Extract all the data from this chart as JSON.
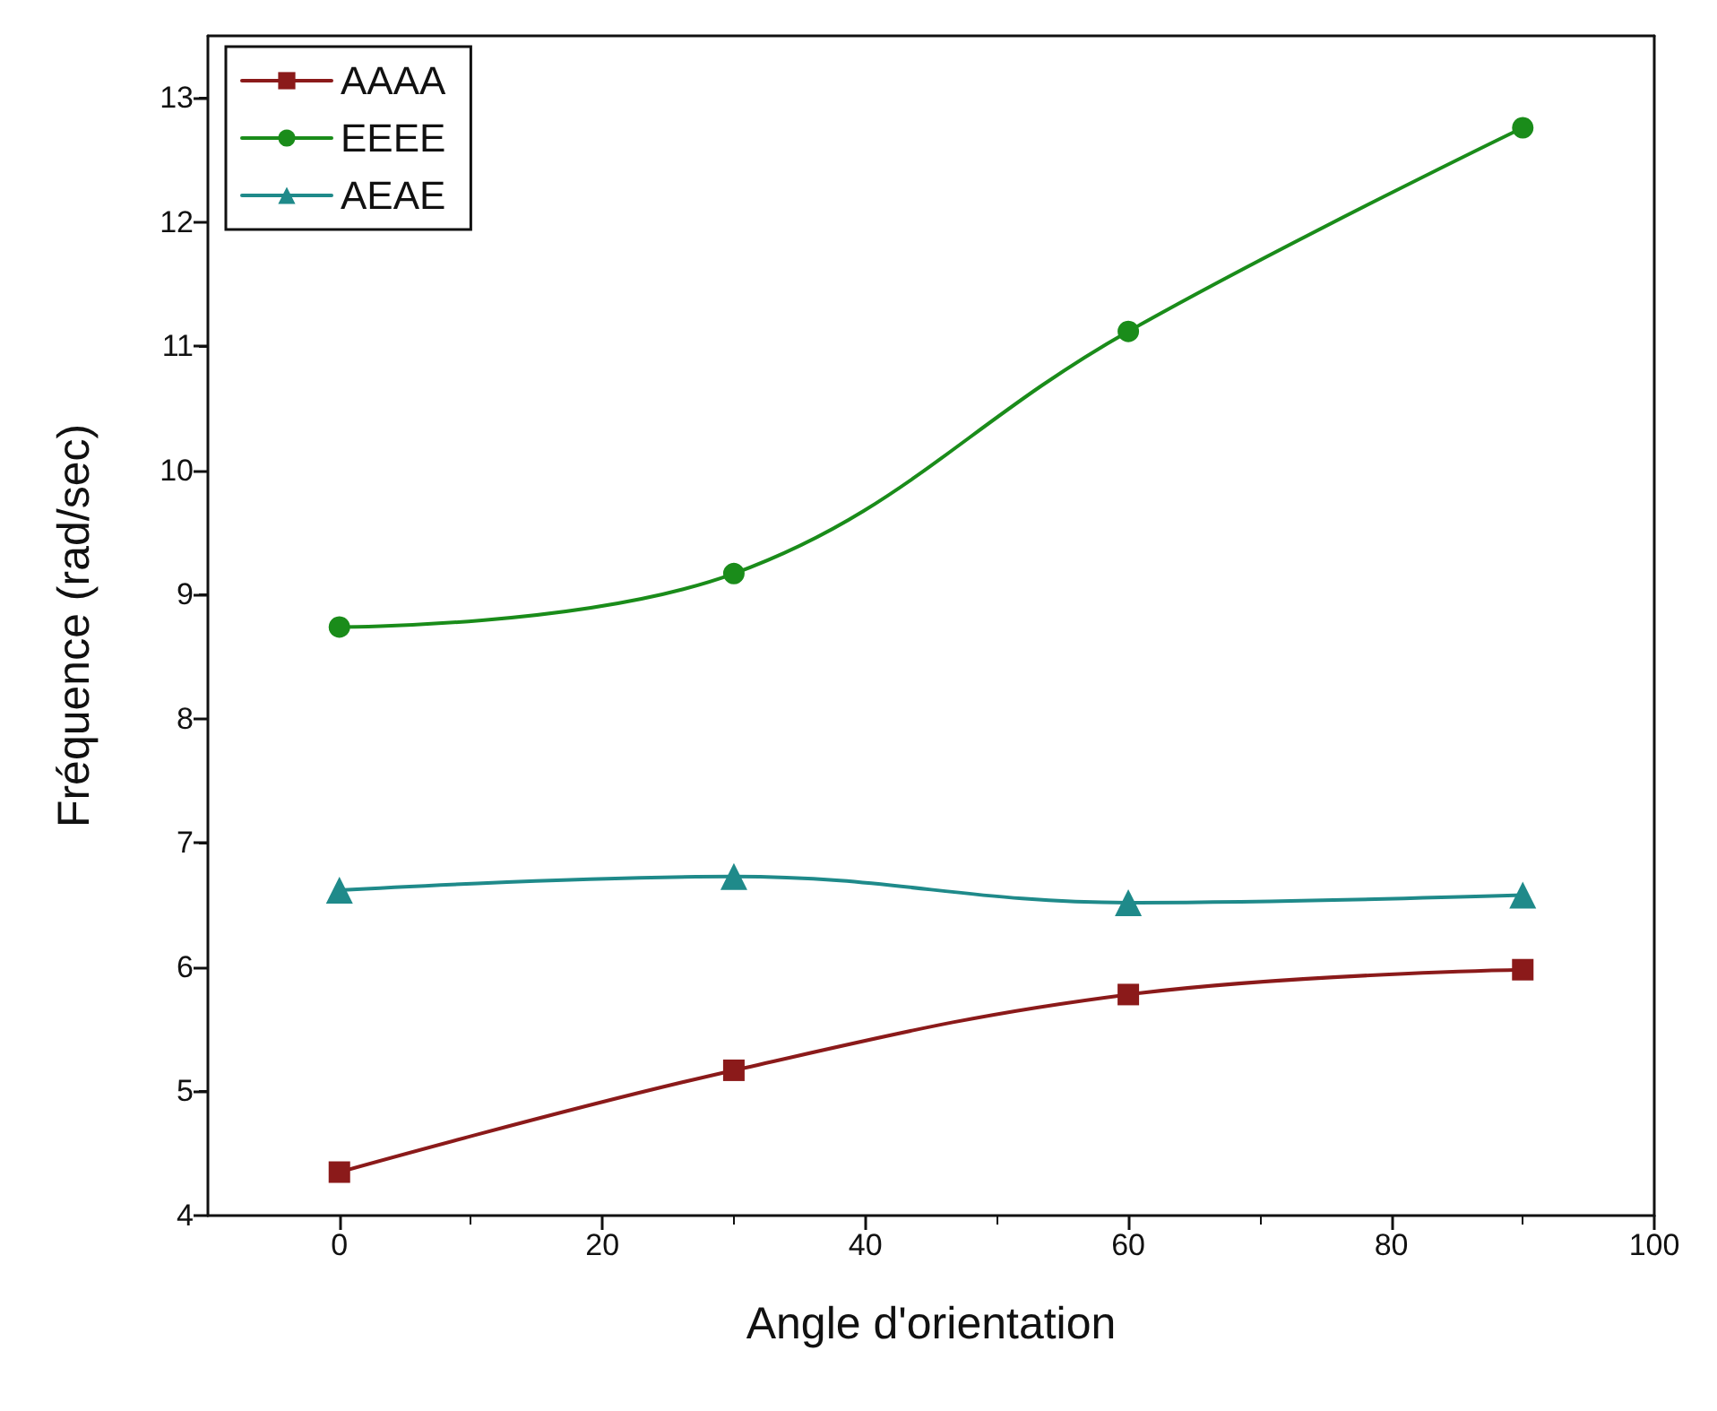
{
  "chart_data": {
    "type": "line",
    "xlabel": "Angle d'orientation",
    "ylabel": "Fréquence (rad/sec)",
    "x": [
      0,
      30,
      60,
      90
    ],
    "series": [
      {
        "name": "AAAA",
        "color": "#8b1a1a",
        "marker": "square",
        "values": [
          4.35,
          5.17,
          5.78,
          5.98
        ]
      },
      {
        "name": "EEEE",
        "color": "#1a8c1a",
        "marker": "circle",
        "values": [
          8.74,
          9.17,
          11.12,
          12.76
        ]
      },
      {
        "name": "AEAE",
        "color": "#1f8a8a",
        "marker": "triangle",
        "values": [
          6.62,
          6.73,
          6.52,
          6.58
        ]
      }
    ],
    "xlim": [
      -10,
      100
    ],
    "xticks": [
      0,
      20,
      40,
      60,
      80,
      100
    ],
    "ylim": [
      4,
      13.5
    ],
    "yticks": [
      4,
      5,
      6,
      7,
      8,
      9,
      10,
      11,
      12,
      13
    ],
    "grid": false,
    "legend": "top left",
    "line_style": "solid"
  }
}
